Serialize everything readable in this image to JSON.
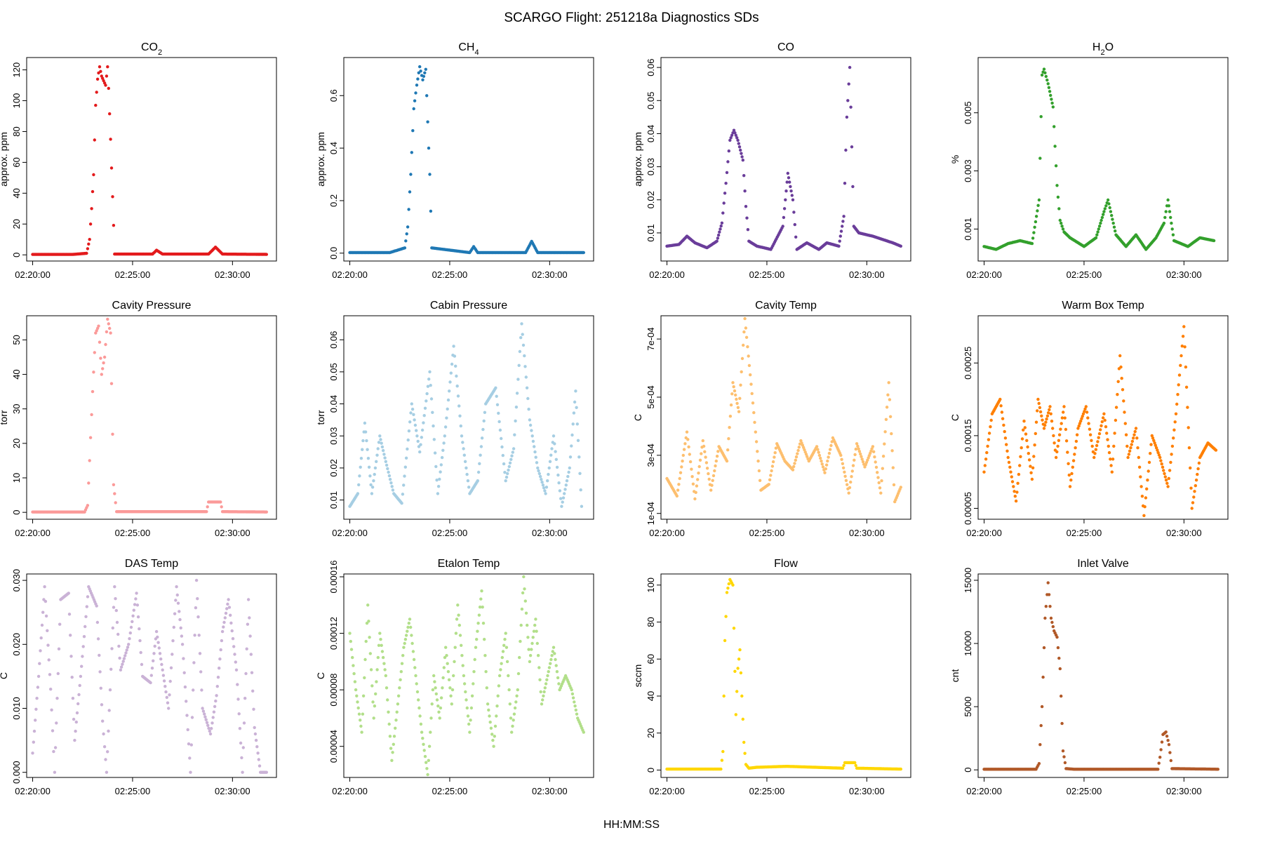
{
  "title": "SCARGO Flight: 251218a  Diagnostics SDs",
  "xlabel_common": "HH:MM:SS",
  "x_ticks": [
    "02:20:00",
    "02:25:00",
    "02:30:00"
  ],
  "chart_data": [
    {
      "type": "scatter",
      "title": "CO",
      "title_sub": "2",
      "ylabel": "approx. ppm",
      "color": "#e31a1c",
      "ylim": [
        -4,
        128
      ],
      "yticks": [
        0,
        20,
        40,
        60,
        80,
        100,
        120
      ],
      "yticklabels": [
        "0",
        "20",
        "40",
        "60",
        "80",
        "100",
        "120"
      ],
      "xlim_min": [
        0,
        11.9
      ],
      "series": [
        {
          "name": "CO2",
          "x": [
            0,
            2,
            2.7,
            2.85,
            2.95,
            3.05,
            3.15,
            3.25,
            3.35,
            3.45,
            3.55,
            3.65,
            3.75,
            3.8,
            3.9,
            4.1,
            6.0,
            6.2,
            6.5,
            8.8,
            9.15,
            9.5,
            11.7
          ],
          "y": [
            0.3,
            0.3,
            1,
            10,
            30,
            52,
            97,
            114,
            122,
            116,
            113,
            110,
            122,
            108,
            75,
            0.5,
            0.5,
            3,
            0.5,
            0.5,
            5,
            0.5,
            0.3
          ]
        }
      ]
    },
    {
      "type": "scatter",
      "title": "CH",
      "title_sub": "4",
      "ylabel": "approx. ppm",
      "color": "#1f78b4",
      "ylim": [
        -0.03,
        0.745
      ],
      "yticks": [
        0,
        0.2,
        0.4,
        0.6
      ],
      "yticklabels": [
        "0.0",
        "0.2",
        "0.4",
        "0.6"
      ],
      "series": [
        {
          "name": "CH4",
          "x": [
            0,
            2,
            2.75,
            2.9,
            3.05,
            3.2,
            3.35,
            3.5,
            3.65,
            3.8,
            3.9,
            4.0,
            4.1,
            6.0,
            6.2,
            6.4,
            8.8,
            9.1,
            9.4,
            11.7
          ],
          "y": [
            0.002,
            0.002,
            0.02,
            0.1,
            0.3,
            0.55,
            0.64,
            0.71,
            0.66,
            0.7,
            0.5,
            0.3,
            0.02,
            0.002,
            0.025,
            0.002,
            0.002,
            0.045,
            0.002,
            0.002
          ]
        }
      ]
    },
    {
      "type": "scatter",
      "title": "CO",
      "title_sub": "",
      "ylabel": "approx. ppm",
      "color": "#6a3d9a",
      "ylim": [
        0.0015,
        0.063
      ],
      "yticks": [
        0.01,
        0.02,
        0.03,
        0.04,
        0.05,
        0.06
      ],
      "yticklabels": [
        "0.01",
        "0.02",
        "0.03",
        "0.04",
        "0.05",
        "0.06"
      ],
      "series": [
        {
          "name": "CO",
          "x": [
            0,
            0.6,
            1,
            1.4,
            2.0,
            2.5,
            2.75,
            2.95,
            3.15,
            3.35,
            3.55,
            3.8,
            3.95,
            4.1,
            4.5,
            5.2,
            5.8,
            6.05,
            6.3,
            6.5,
            7.0,
            7.6,
            8.0,
            8.6,
            8.85,
            9.0,
            9.15,
            9.35,
            9.6,
            10.3,
            10.8,
            11.3,
            11.7
          ],
          "y": [
            0.006,
            0.0065,
            0.009,
            0.007,
            0.0055,
            0.0075,
            0.013,
            0.025,
            0.038,
            0.041,
            0.038,
            0.032,
            0.018,
            0.0075,
            0.006,
            0.005,
            0.012,
            0.028,
            0.02,
            0.005,
            0.007,
            0.005,
            0.007,
            0.006,
            0.015,
            0.045,
            0.06,
            0.012,
            0.01,
            0.009,
            0.008,
            0.007,
            0.006
          ]
        }
      ]
    },
    {
      "type": "scatter",
      "title": "H",
      "title_sub": "2",
      "title_after": "O",
      "ylabel": "%",
      "color": "#33a02c",
      "ylim": [
        -0.0001,
        0.0069
      ],
      "yticks": [
        0.001,
        0.003,
        0.005
      ],
      "yticklabels": [
        "0.001",
        "0.003",
        "0.005"
      ],
      "series": [
        {
          "name": "H2O",
          "x": [
            0,
            0.6,
            1.2,
            1.8,
            2.4,
            2.75,
            2.9,
            3.0,
            3.2,
            3.45,
            3.65,
            3.8,
            4.0,
            4.3,
            5.0,
            5.6,
            6.0,
            6.2,
            6.6,
            7.1,
            7.6,
            8.1,
            8.6,
            9.0,
            9.2,
            9.5,
            10.2,
            10.8,
            11.5
          ],
          "y": [
            0.0004,
            0.0003,
            0.0005,
            0.0006,
            0.0005,
            0.002,
            0.0063,
            0.0065,
            0.006,
            0.0052,
            0.0025,
            0.0013,
            0.0009,
            0.0007,
            0.0004,
            0.0007,
            0.0016,
            0.002,
            0.0008,
            0.0004,
            0.0008,
            0.0003,
            0.0007,
            0.0012,
            0.002,
            0.0006,
            0.0004,
            0.0007,
            0.0006
          ]
        }
      ]
    },
    {
      "type": "scatter",
      "title": "Cavity Pressure",
      "ylabel": "torr",
      "color": "#fb9a99",
      "ylim": [
        -2,
        57
      ],
      "yticks": [
        0,
        10,
        20,
        30,
        40,
        50
      ],
      "yticklabels": [
        "0",
        "10",
        "20",
        "30",
        "40",
        "50"
      ],
      "series": [
        {
          "name": "Cavity Pressure",
          "x": [
            0,
            2.6,
            2.75,
            2.85,
            3.0,
            3.15,
            3.3,
            3.45,
            3.6,
            3.75,
            3.9,
            4.05,
            4.2,
            8.7,
            8.8,
            9.4,
            9.5,
            11.7
          ],
          "y": [
            0.1,
            0.1,
            2,
            15,
            35,
            52,
            54,
            40,
            45,
            56,
            52,
            8,
            0.2,
            0.2,
            3,
            3,
            0.2,
            0.1
          ]
        }
      ]
    },
    {
      "type": "scatter",
      "title": "Cabin Pressure",
      "ylabel": "torr",
      "color": "#a6cee3",
      "ylim": [
        0.004,
        0.0675
      ],
      "yticks": [
        0.01,
        0.02,
        0.03,
        0.04,
        0.05,
        0.06
      ],
      "yticklabels": [
        "0.01",
        "0.02",
        "0.03",
        "0.04",
        "0.05",
        "0.06"
      ],
      "series": [
        {
          "name": "Cabin Pressure",
          "x": [
            0,
            0.4,
            0.75,
            1.1,
            1.5,
            1.8,
            2.2,
            2.6,
            3.1,
            3.5,
            4.0,
            4.4,
            4.75,
            5.2,
            5.6,
            6.0,
            6.4,
            6.8,
            7.3,
            7.8,
            8.2,
            8.6,
            9.0,
            9.4,
            9.8,
            10.2,
            10.6,
            11.0,
            11.3,
            11.6
          ],
          "y": [
            0.008,
            0.012,
            0.034,
            0.012,
            0.03,
            0.022,
            0.012,
            0.009,
            0.04,
            0.025,
            0.05,
            0.012,
            0.03,
            0.058,
            0.03,
            0.012,
            0.016,
            0.04,
            0.045,
            0.016,
            0.026,
            0.065,
            0.035,
            0.02,
            0.012,
            0.03,
            0.008,
            0.02,
            0.044,
            0.008
          ]
        }
      ]
    },
    {
      "type": "scatter",
      "title": "Cavity Temp",
      "ylabel": "C",
      "color": "#fdbf6f",
      "ylim": [
        8e-05,
        0.00078
      ],
      "yticks": [
        0.0001,
        0.0003,
        0.0005,
        0.0007
      ],
      "yticklabels": [
        "1e-04",
        "3e-04",
        "5e-04",
        "7e-04"
      ],
      "series": [
        {
          "name": "Cavity Temp",
          "x": [
            0,
            0.5,
            1.0,
            1.4,
            1.8,
            2.2,
            2.6,
            3.0,
            3.3,
            3.6,
            3.9,
            4.3,
            4.7,
            5.1,
            5.5,
            5.9,
            6.3,
            6.7,
            7.1,
            7.5,
            7.9,
            8.3,
            8.7,
            9.1,
            9.5,
            9.9,
            10.3,
            10.7,
            11.1,
            11.4,
            11.7
          ],
          "y": [
            0.00022,
            0.00016,
            0.00038,
            0.00015,
            0.00035,
            0.00018,
            0.00033,
            0.00028,
            0.00055,
            0.00045,
            0.00077,
            0.00048,
            0.00018,
            0.0002,
            0.00034,
            0.00028,
            0.00025,
            0.00035,
            0.00028,
            0.00033,
            0.00024,
            0.00036,
            0.0003,
            0.00017,
            0.00034,
            0.00026,
            0.00033,
            0.00017,
            0.00055,
            0.00014,
            0.00019
          ]
        }
      ]
    },
    {
      "type": "scatter",
      "title": "Warm Box Temp",
      "ylabel": "C",
      "color": "#ff7f00",
      "ylim": [
        3.5e-05,
        0.000315
      ],
      "yticks": [
        5e-05,
        0.00015,
        0.00025
      ],
      "yticklabels": [
        "0.00005",
        "0.00015",
        "0.00025"
      ],
      "series": [
        {
          "name": "Warm Box Temp",
          "x": [
            0,
            0.4,
            0.8,
            1.2,
            1.6,
            2.0,
            2.4,
            2.7,
            3.0,
            3.3,
            3.6,
            4.0,
            4.3,
            4.7,
            5.1,
            5.5,
            6.0,
            6.4,
            6.8,
            7.2,
            7.6,
            8.0,
            8.4,
            8.8,
            9.2,
            9.6,
            10.0,
            10.4,
            10.8,
            11.2,
            11.6
          ],
          "y": [
            0.0001,
            0.00018,
            0.0002,
            0.00012,
            6e-05,
            0.00017,
            9e-05,
            0.0002,
            0.00016,
            0.00019,
            0.00012,
            0.00019,
            8e-05,
            0.00016,
            0.00019,
            0.00012,
            0.00018,
            0.0001,
            0.00026,
            0.00012,
            0.00016,
            4e-05,
            0.00015,
            0.00012,
            8e-05,
            0.00018,
            0.0003,
            5e-05,
            0.00012,
            0.00014,
            0.00013
          ]
        }
      ]
    },
    {
      "type": "scatter",
      "title": "DAS Temp",
      "ylabel": "C",
      "color": "#cab2d6",
      "ylim": [
        -0.0008,
        0.031
      ],
      "yticks": [
        0,
        0.01,
        0.02,
        0.03
      ],
      "yticklabels": [
        "0.000",
        "0.010",
        "0.020",
        "0.030"
      ],
      "series": [
        {
          "name": "DAS Temp",
          "x": [
            0,
            0.3,
            0.6,
            0.9,
            1.1,
            1.4,
            1.8,
            2.1,
            2.4,
            2.8,
            3.2,
            3.5,
            3.7,
            4.1,
            4.4,
            4.8,
            5.2,
            5.5,
            5.9,
            6.2,
            6.5,
            6.8,
            7.2,
            7.5,
            7.9,
            8.2,
            8.5,
            8.9,
            9.2,
            9.5,
            9.8,
            10.2,
            10.5,
            10.8,
            11.1,
            11.4,
            11.7
          ],
          "y": [
            0.003,
            0.015,
            0.029,
            0.013,
            0.0,
            0.027,
            0.028,
            0.005,
            0.015,
            0.029,
            0.026,
            0.008,
            0.0,
            0.029,
            0.016,
            0.02,
            0.028,
            0.015,
            0.014,
            0.022,
            0.016,
            0.01,
            0.029,
            0.02,
            0.0,
            0.03,
            0.01,
            0.006,
            0.012,
            0.022,
            0.027,
            0.016,
            0.0,
            0.027,
            0.007,
            0.0,
            0.0
          ]
        }
      ]
    },
    {
      "type": "scatter",
      "title": "Etalon Temp",
      "ylabel": "C",
      "color": "#b2df8a",
      "ylim": [
        1.8e-05,
        0.000162
      ],
      "yticks": [
        4e-05,
        8e-05,
        0.00012,
        0.00016
      ],
      "yticklabels": [
        "0.00004",
        "0.00008",
        "0.00012",
        "0.00016"
      ],
      "series": [
        {
          "name": "Etalon Temp",
          "x": [
            0,
            0.3,
            0.6,
            0.9,
            1.2,
            1.5,
            1.8,
            2.1,
            2.4,
            2.7,
            3.0,
            3.3,
            3.6,
            3.9,
            4.2,
            4.5,
            4.8,
            5.1,
            5.4,
            5.7,
            6.0,
            6.3,
            6.6,
            6.9,
            7.2,
            7.5,
            7.8,
            8.1,
            8.4,
            8.7,
            9.0,
            9.3,
            9.6,
            9.9,
            10.2,
            10.5,
            10.8,
            11.1,
            11.4,
            11.7
          ],
          "y": [
            0.00012,
            8e-05,
            5e-05,
            0.00014,
            6e-05,
            0.00012,
            9e-05,
            3e-05,
            7e-05,
            0.00011,
            0.00013,
            9e-05,
            5e-05,
            2e-05,
            9e-05,
            6e-05,
            0.00011,
            7e-05,
            0.00014,
            9e-05,
            5e-05,
            0.00011,
            0.00015,
            7e-05,
            4e-05,
            9e-05,
            0.00012,
            5e-05,
            8e-05,
            0.00016,
            0.0001,
            0.00013,
            7e-05,
            9e-05,
            0.00011,
            8e-05,
            9e-05,
            8e-05,
            6e-05,
            5e-05
          ]
        }
      ]
    },
    {
      "type": "scatter",
      "title": "Flow",
      "ylabel": "sccm",
      "color": "#ffd700",
      "ylim": [
        -4,
        106
      ],
      "yticks": [
        0,
        20,
        40,
        60,
        80,
        100
      ],
      "yticklabels": [
        "0",
        "20",
        "40",
        "60",
        "80",
        "100"
      ],
      "series": [
        {
          "name": "Flow",
          "x": [
            0,
            2.7,
            2.8,
            2.9,
            3.0,
            3.15,
            3.3,
            3.45,
            3.55,
            3.65,
            3.75,
            3.85,
            3.95,
            4.1,
            4.5,
            6.0,
            8.8,
            8.9,
            9.4,
            9.5,
            11.7
          ],
          "y": [
            0.5,
            0.5,
            10,
            70,
            96,
            103,
            100,
            30,
            55,
            65,
            40,
            15,
            3,
            1,
            1.5,
            2,
            1,
            4,
            4,
            1,
            0.5
          ]
        }
      ]
    },
    {
      "type": "scatter",
      "title": "Inlet Valve",
      "ylabel": "cnt",
      "color": "#b15928",
      "ylim": [
        -600,
        15500
      ],
      "yticks": [
        0,
        5000,
        10000,
        15000
      ],
      "yticklabels": [
        "0",
        "5000",
        "10000",
        "15000"
      ],
      "series": [
        {
          "name": "Inlet Valve",
          "x": [
            0,
            2.6,
            2.75,
            2.9,
            3.05,
            3.2,
            3.35,
            3.5,
            3.65,
            3.8,
            3.95,
            4.1,
            4.5,
            8.7,
            8.8,
            8.95,
            9.1,
            9.25,
            9.4,
            11.7
          ],
          "y": [
            50,
            50,
            500,
            5000,
            12000,
            14800,
            12000,
            11000,
            10500,
            8000,
            1500,
            100,
            50,
            50,
            1000,
            2800,
            3000,
            2000,
            100,
            50
          ]
        }
      ]
    }
  ]
}
